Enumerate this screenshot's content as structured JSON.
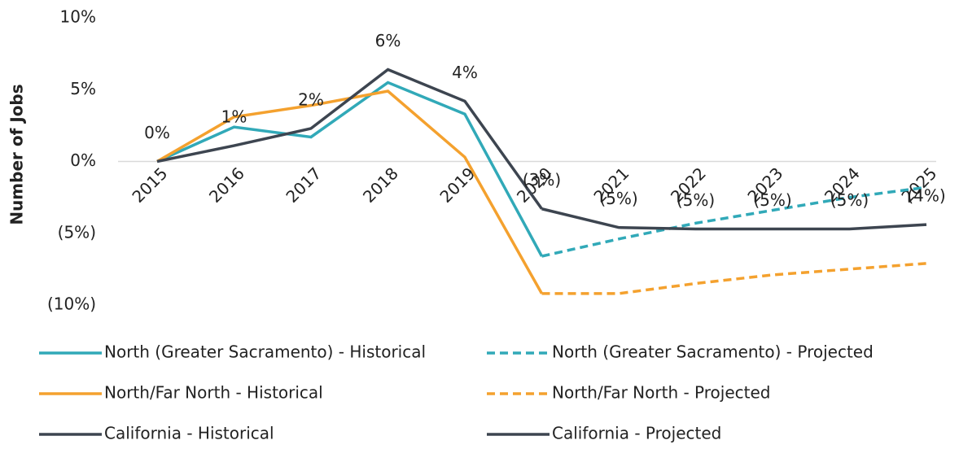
{
  "chart_data": {
    "type": "line",
    "y_label": "Number of Jobs",
    "categories": [
      "2015",
      "2016",
      "2017",
      "2018",
      "2019",
      "2020",
      "2021",
      "2022",
      "2023",
      "2024",
      "2025"
    ],
    "ylim": [
      -10,
      10
    ],
    "yticks": [
      {
        "value": 10,
        "label": "10%"
      },
      {
        "value": 5,
        "label": "5%"
      },
      {
        "value": 0,
        "label": "0%"
      },
      {
        "value": -5,
        "label": "(5%)"
      },
      {
        "value": -10,
        "label": "(10%)"
      }
    ],
    "negative_color": "#ff0000",
    "zero_line": true,
    "series": [
      {
        "name": "North (Greater Sacramento) - Historical",
        "color": "#31a9b8",
        "style": "solid",
        "values": [
          0,
          2.4,
          1.7,
          5.5,
          3.3,
          -6.6,
          null,
          null,
          null,
          null,
          null
        ]
      },
      {
        "name": "North (Greater Sacramento) - Projected",
        "color": "#31a9b8",
        "style": "dashed",
        "values": [
          null,
          null,
          null,
          null,
          null,
          -6.6,
          -5.4,
          -4.3,
          -3.4,
          -2.5,
          -1.8
        ]
      },
      {
        "name": "North/Far North - Historical",
        "color": "#f4a12e",
        "style": "solid",
        "values": [
          0,
          3.1,
          3.9,
          4.9,
          0.3,
          -9.2,
          null,
          null,
          null,
          null,
          null
        ]
      },
      {
        "name": "North/Far North - Projected",
        "color": "#f4a12e",
        "style": "dashed",
        "values": [
          null,
          null,
          null,
          null,
          null,
          -9.2,
          -9.2,
          -8.5,
          -7.9,
          -7.5,
          -7.1
        ]
      },
      {
        "name": "California - Historical",
        "color": "#3d4550",
        "style": "solid",
        "values": [
          0,
          1.1,
          2.3,
          6.4,
          4.2,
          -3.3,
          null,
          null,
          null,
          null,
          null
        ],
        "value_labels": [
          "0%",
          "1%",
          "2%",
          "6%",
          "4%",
          "(3%)",
          null,
          null,
          null,
          null,
          null
        ]
      },
      {
        "name": "California - Projected",
        "color": "#3d4550",
        "style": "solid",
        "values": [
          null,
          null,
          null,
          null,
          null,
          -3.3,
          -4.6,
          -4.7,
          -4.7,
          -4.7,
          -4.4
        ],
        "value_labels": [
          null,
          null,
          null,
          null,
          null,
          null,
          "(5%)",
          "(5%)",
          "(5%)",
          "(5%)",
          "(4%)"
        ]
      }
    ]
  }
}
